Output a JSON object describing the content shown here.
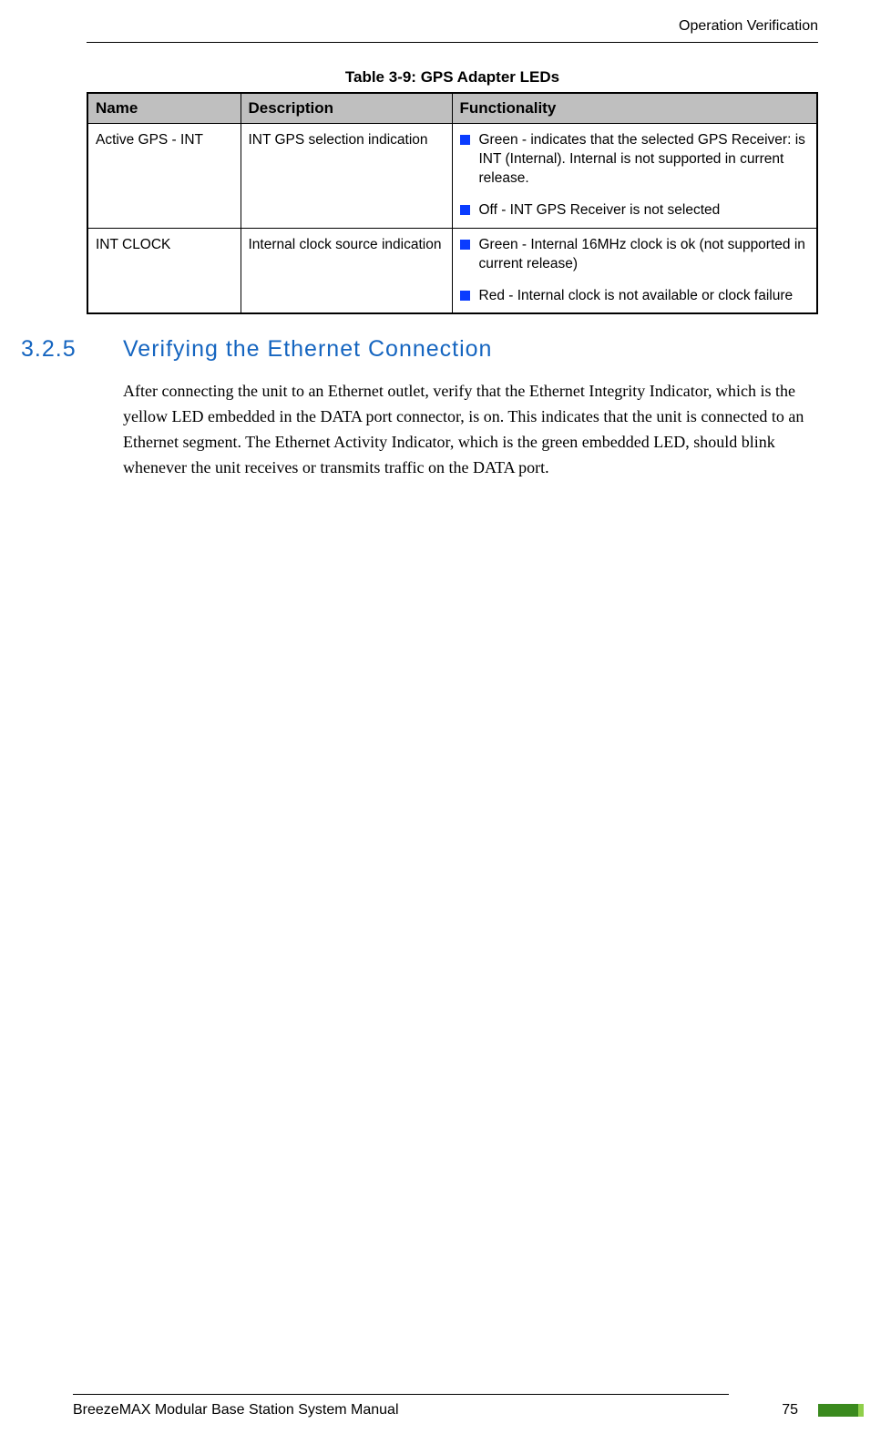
{
  "header": {
    "right_text": "Operation Verification"
  },
  "table": {
    "caption": "Table 3-9: GPS Adapter LEDs",
    "columns": [
      "Name",
      "Description",
      "Functionality"
    ],
    "header_bg": "#bfbfbf",
    "bullet_color": "#0a3cff",
    "rows": [
      {
        "name": "Active GPS - INT",
        "description": "INT GPS selection indication",
        "functionality": [
          "Green - indicates that the selected GPS Receiver: is INT (Internal). Internal is not supported in current release.",
          "Off - INT GPS Receiver is not selected"
        ]
      },
      {
        "name": "INT CLOCK",
        "description": "Internal clock source indication",
        "functionality": [
          "Green - Internal 16MHz clock is ok (not supported in current release)",
          "Red - Internal clock is not available or clock failure"
        ]
      }
    ]
  },
  "section": {
    "number": "3.2.5",
    "title": "Verifying the Ethernet Connection",
    "title_color": "#1565c0",
    "paragraph": "After connecting the unit to an Ethernet outlet, verify that the Ethernet Integrity Indicator, which is the yellow LED embedded in the DATA port connector, is on. This indicates that the unit is connected to an Ethernet segment. The Ethernet Activity Indicator, which is the green embedded LED, should blink whenever the unit receives or transmits traffic on the DATA port."
  },
  "footer": {
    "manual_title": "BreezeMAX Modular Base Station System Manual",
    "page_number": "75",
    "bar_color": "#3a8a1e"
  }
}
